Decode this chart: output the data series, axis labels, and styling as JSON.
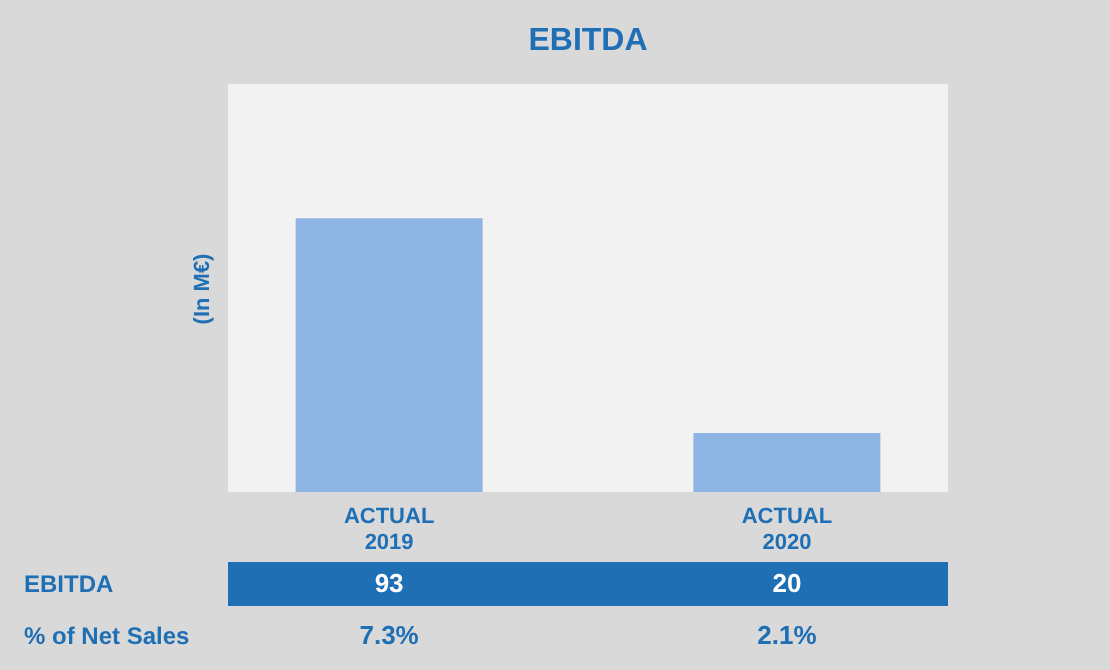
{
  "chart_data": {
    "type": "bar",
    "title": "EBITDA",
    "ylabel": "(In M€)",
    "categories": [
      "ACTUAL 2019",
      "ACTUAL 2020"
    ],
    "values": [
      93,
      20
    ],
    "color": "#8eb4e3",
    "data_labels": true,
    "grid": false,
    "annotations": [
      "EBITDA",
      "% of Net Sales",
      "7.3%",
      "2.1%"
    ]
  }
}
